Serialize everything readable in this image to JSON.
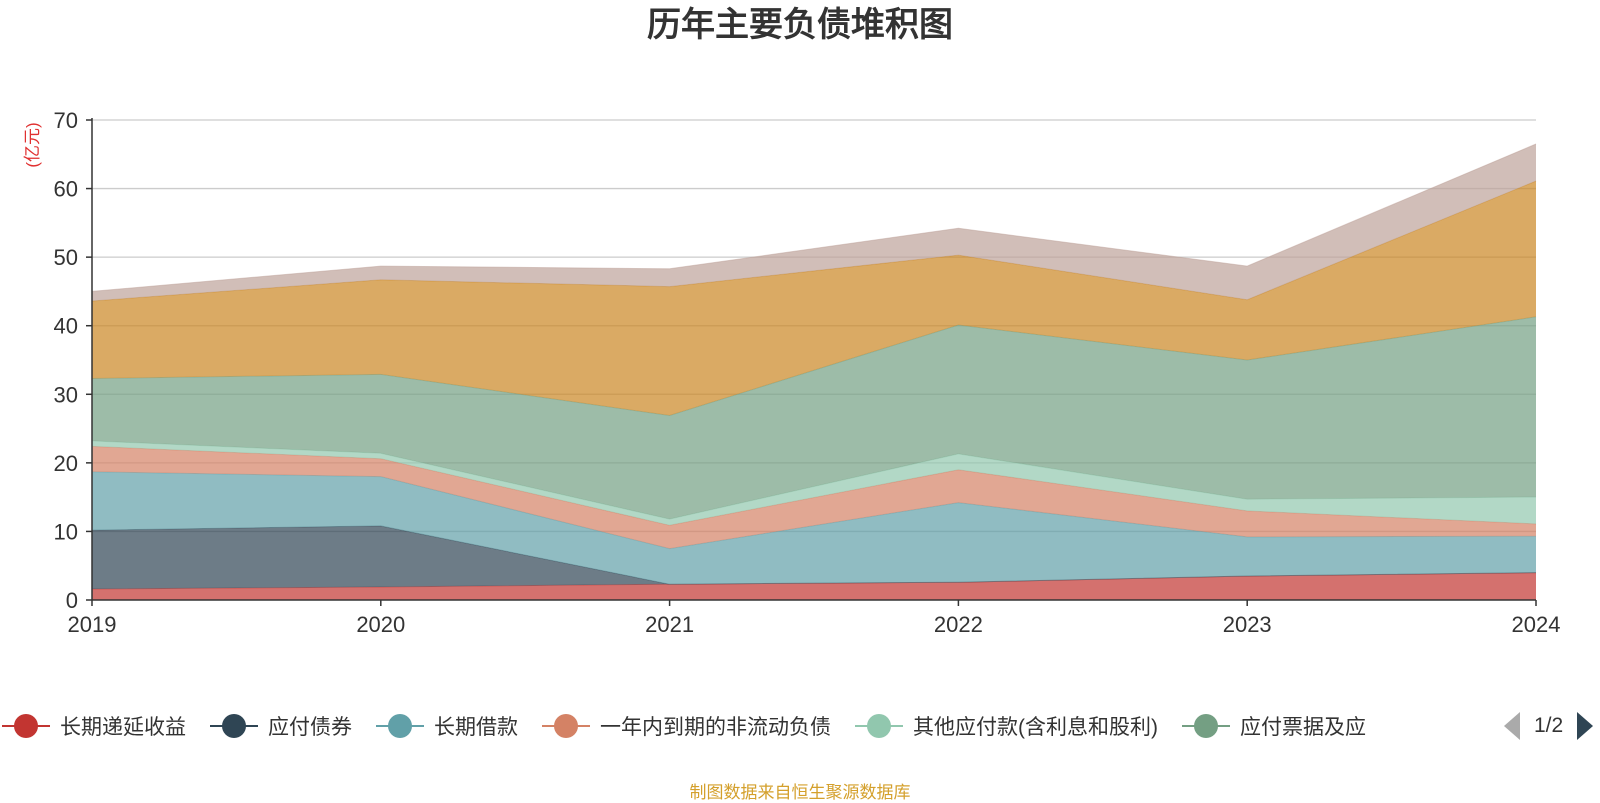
{
  "chart_data": {
    "type": "area",
    "title": "历年主要负债堆积图",
    "ylabel": "(亿元)",
    "xlabel": "",
    "stacked": true,
    "x": [
      "2019",
      "2020",
      "2021",
      "2022",
      "2023",
      "2024"
    ],
    "ylim": [
      0,
      70
    ],
    "yticks": [
      0,
      10,
      20,
      30,
      40,
      50,
      60,
      70
    ],
    "grid": true,
    "legend_position": "bottom",
    "series": [
      {
        "name": "长期递延收益",
        "color": "#c23531",
        "values": [
          1.6,
          1.9,
          2.3,
          2.6,
          3.5,
          4.0
        ]
      },
      {
        "name": "应付债券",
        "color": "#2f4554",
        "values": [
          8.6,
          8.9,
          0,
          0,
          0,
          0
        ]
      },
      {
        "name": "长期借款",
        "color": "#61a0a8",
        "values": [
          8.5,
          7.2,
          5.2,
          11.6,
          5.7,
          5.3
        ]
      },
      {
        "name": "一年内到期的非流动负债",
        "color": "#d48265",
        "values": [
          3.7,
          2.6,
          3.4,
          4.8,
          3.8,
          1.8
        ]
      },
      {
        "name": "其他应付款(含利息和股利)",
        "color": "#91c7ae",
        "values": [
          0.8,
          0.8,
          0.9,
          2.3,
          1.7,
          3.9
        ]
      },
      {
        "name": "应付票据及应付账款",
        "color": "#749f83",
        "values": [
          9.1,
          11.5,
          15.1,
          18.8,
          20.3,
          26.3
        ]
      },
      {
        "name": "",
        "color": "#ca8622",
        "values": [
          11.3,
          13.8,
          18.8,
          10.2,
          8.8,
          19.8
        ]
      },
      {
        "name": "",
        "color": "#bda29a",
        "values": [
          1.4,
          2.0,
          2.6,
          3.9,
          4.9,
          5.4
        ]
      }
    ]
  },
  "legend": {
    "items": [
      {
        "label": "长期递延收益",
        "color": "#c23531"
      },
      {
        "label": "应付债券",
        "color": "#2f4554"
      },
      {
        "label": "长期借款",
        "color": "#61a0a8"
      },
      {
        "label": "一年内到期的非流动负债",
        "color": "#d48265"
      },
      {
        "label": "其他应付款(含利息和股利)",
        "color": "#91c7ae"
      },
      {
        "label": "应付票据及应",
        "color": "#749f83"
      }
    ],
    "page_indicator": "1/2"
  },
  "footer": {
    "source": "制图数据来自恒生聚源数据库"
  }
}
